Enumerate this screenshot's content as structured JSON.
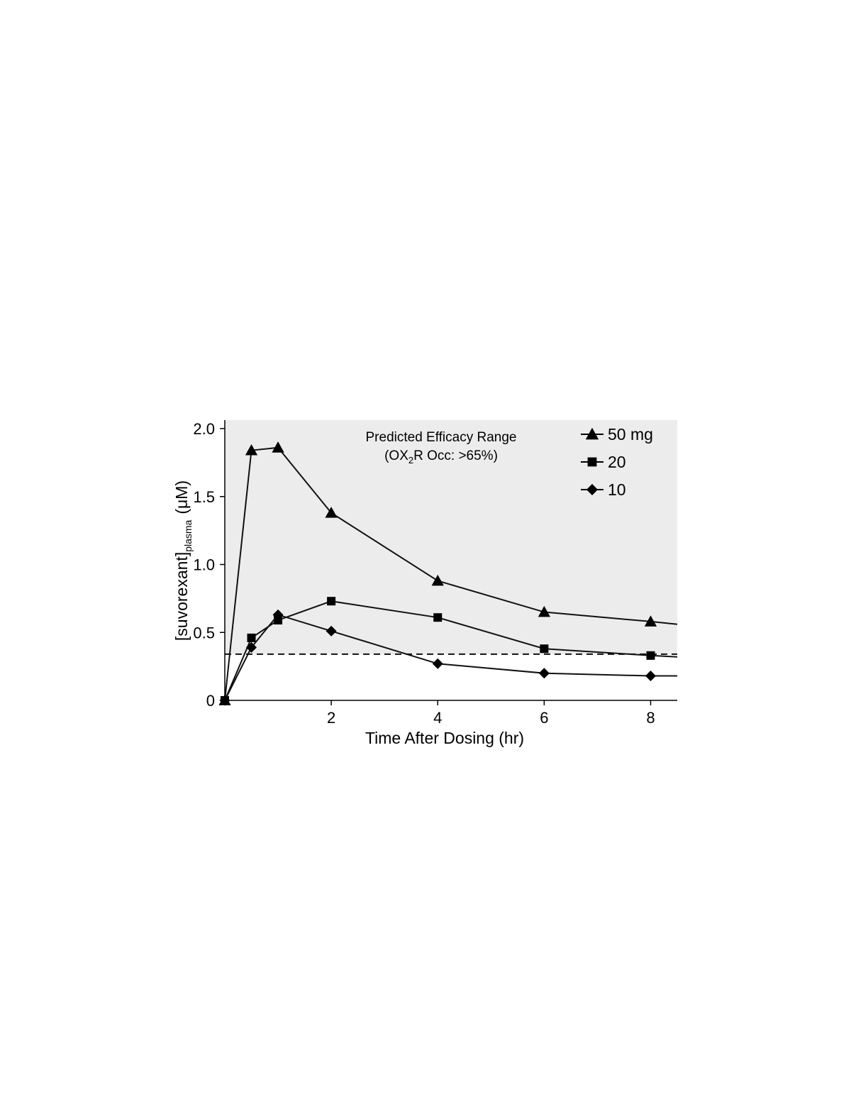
{
  "chart_data": {
    "type": "line",
    "xlabel": "Time After Dosing (hr)",
    "ylabel": {
      "prefix": "[suvorexant]",
      "subscript": "plasma",
      "unit": "(μM)"
    },
    "xlim": [
      0,
      8.5
    ],
    "ylim": [
      0,
      2.0
    ],
    "xticks": [
      2,
      4,
      6,
      8
    ],
    "yticks": [
      {
        "value": 0,
        "label": "0"
      },
      {
        "value": 0.5,
        "label": "0.5"
      },
      {
        "value": 1.0,
        "label": "1.0"
      },
      {
        "value": 1.5,
        "label": "1.5"
      },
      {
        "value": 2.0,
        "label": "2.0"
      }
    ],
    "shaded_region": {
      "y_from": 0.34,
      "y_to": 2.0,
      "color": "#ececec",
      "annotation_line1": "Predicted Efficacy Range",
      "annotation_line2": {
        "before": "(OX",
        "sub": "2",
        "after": "R Occ: >65%)"
      }
    },
    "threshold": 0.34,
    "series": [
      {
        "name": "50 mg",
        "marker": "triangle",
        "x": [
          0,
          0.5,
          1,
          2,
          4,
          6,
          8
        ],
        "y": [
          0,
          1.84,
          1.86,
          1.38,
          0.88,
          0.65,
          0.58
        ],
        "end_y": 0.56
      },
      {
        "name": "20",
        "marker": "square",
        "x": [
          0,
          0.5,
          1,
          2,
          4,
          6,
          8
        ],
        "y": [
          0,
          0.46,
          0.59,
          0.73,
          0.61,
          0.38,
          0.33
        ],
        "end_y": 0.32
      },
      {
        "name": "10",
        "marker": "diamond",
        "x": [
          0,
          0.5,
          1,
          2,
          4,
          6,
          8
        ],
        "y": [
          0,
          0.39,
          0.63,
          0.51,
          0.27,
          0.2,
          0.18
        ],
        "end_y": 0.18
      }
    ],
    "legend_position": "top-right",
    "line_color": "#111111"
  }
}
